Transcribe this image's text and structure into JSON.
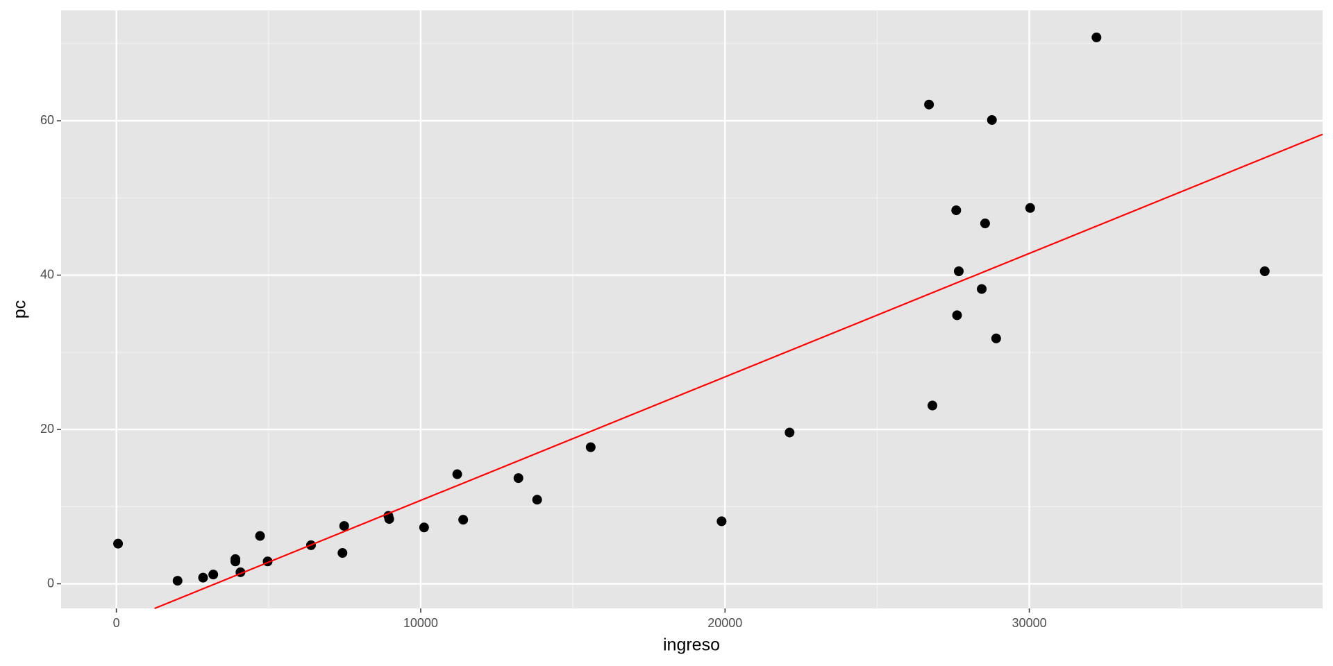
{
  "chart_data": {
    "type": "scatter",
    "x_label": "ingreso",
    "y_label": "pc",
    "xlim": [
      -1816,
      39637
    ],
    "ylim": [
      -3.19,
      74.3
    ],
    "xticks": [
      0,
      10000,
      20000,
      30000
    ],
    "yticks": [
      0,
      20,
      40,
      60
    ],
    "x_minor_breaks": [
      5000,
      15000,
      25000,
      35000
    ],
    "y_minor_breaks": [
      10,
      30,
      50,
      70
    ],
    "grid": true,
    "panel_color": "#e5e5e5",
    "series": [
      {
        "color": "#000000",
        "x": [
          56,
          2011,
          2849,
          3184,
          3911,
          3911,
          4078,
          4721,
          4972,
          6397,
          7430,
          7486,
          8939,
          8966,
          10112,
          11201,
          11397,
          13212,
          13827,
          15587,
          19888,
          22123,
          26704,
          26816,
          27598,
          27626,
          27682,
          28436,
          28547,
          28771,
          28911,
          30028,
          32207,
          37737
        ],
        "values": [
          5.2,
          0.4,
          0.8,
          1.2,
          3.2,
          2.9,
          1.5,
          6.2,
          2.9,
          5.0,
          4.0,
          7.5,
          8.8,
          8.4,
          7.3,
          14.2,
          8.3,
          13.7,
          10.9,
          17.7,
          8.1,
          19.6,
          62.1,
          23.1,
          48.4,
          34.8,
          40.5,
          38.2,
          46.7,
          60.1,
          31.8,
          48.7,
          70.8,
          40.5
        ]
      }
    ],
    "fit_line": {
      "color": "#ff0000",
      "x": [
        1257,
        39637
      ],
      "values": [
        -3.19,
        58.24
      ]
    }
  }
}
